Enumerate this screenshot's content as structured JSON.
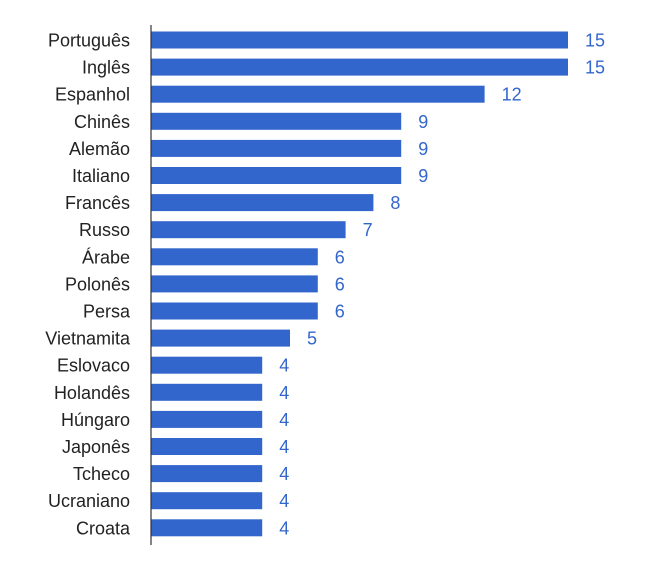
{
  "chart_data": {
    "type": "bar",
    "orientation": "horizontal",
    "categories": [
      "Português",
      "Inglês",
      "Espanhol",
      "Chinês",
      "Alemão",
      "Italiano",
      "Francês",
      "Russo",
      "Árabe",
      "Polonês",
      "Persa",
      "Vietnamita",
      "Eslovaco",
      "Holandês",
      "Húngaro",
      "Japonês",
      "Tcheco",
      "Ucraniano",
      "Croata"
    ],
    "values": [
      15,
      15,
      12,
      9,
      9,
      9,
      8,
      7,
      6,
      6,
      6,
      5,
      4,
      4,
      4,
      4,
      4,
      4,
      4
    ],
    "xlim": [
      0,
      15
    ],
    "grid": false,
    "data_labels": true,
    "colors": {
      "bar": "#3366cc",
      "label": "#3366cc",
      "category_text": "#222222",
      "axis": "#333333"
    }
  }
}
